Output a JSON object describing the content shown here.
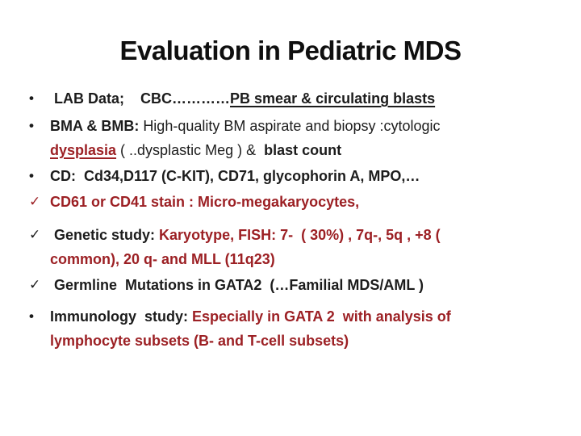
{
  "slide": {
    "title": "Evaluation in Pediatric MDS",
    "bullets": [
      {
        "marker": "dot",
        "marker_red": false,
        "segments": [
          {
            "text": " LAB Data;    CBC…………"
          },
          {
            "text": "PB smear & circulating blasts",
            "underline": true
          }
        ]
      },
      {
        "marker": "dot",
        "marker_red": false,
        "segments": [
          {
            "text": "BMA & BMB: "
          },
          {
            "text": "High-quality BM aspirate and biopsy :cytologic\n",
            "regular": true
          },
          {
            "text": "dysplasia",
            "red": true,
            "underline": true
          },
          {
            "text": " ( ..dysplastic Meg ) & ",
            "regular": true
          },
          {
            "text": " blast count"
          }
        ]
      },
      {
        "marker": "dot",
        "marker_red": false,
        "segments": [
          {
            "text": "CD:  Cd34,D117 (C-KIT), CD71, glycophorin A, MPO,…"
          }
        ]
      },
      {
        "marker": "check",
        "marker_red": true,
        "segments": [
          {
            "text": "CD61 or CD41 stain : Micro-megakaryocytes,",
            "red": true
          }
        ]
      },
      {
        "marker": "check",
        "marker_red": false,
        "segments": [
          {
            "text": " Genetic study: "
          },
          {
            "text": "Karyotype, FISH: 7-  ( 30%) , 7q-, 5q , +8 (\ncommon), 20 q- and MLL (11q23)",
            "red": true
          }
        ]
      },
      {
        "marker": "check",
        "marker_red": false,
        "segments": [
          {
            "text": " Germline  Mutations in GATA2  (…Familial MDS/AML )"
          }
        ]
      },
      {
        "marker": "dot",
        "marker_red": false,
        "segments": [
          {
            "text": "Immunology  study: "
          },
          {
            "text": "Especially in GATA 2  with analysis of\nlymphocyte subsets (B- and T-cell subsets)",
            "red": true
          }
        ]
      }
    ]
  },
  "glyphs": {
    "dot": "•",
    "check": "✓"
  },
  "colors": {
    "background": "#ffffff",
    "text": "#1c1c1c",
    "accent_red": "#9c2024"
  }
}
